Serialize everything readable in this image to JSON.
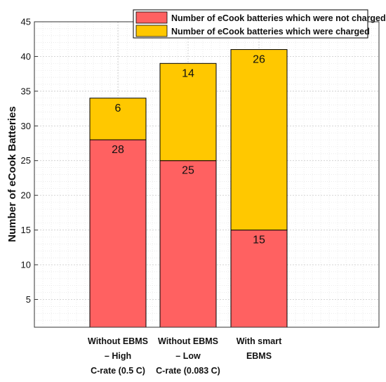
{
  "chart_data": {
    "type": "bar",
    "stacked": true,
    "categories": [
      [
        "Without EBMS",
        "– High",
        "C-rate (0.5 C)"
      ],
      [
        "Without EBMS",
        "– Low",
        "C-rate (0.083 C)"
      ],
      [
        "With smart",
        "EBMS"
      ]
    ],
    "series": [
      {
        "name": "Number of eCook batteries which were not charged",
        "values": [
          28,
          25,
          15
        ],
        "color": "#ff6161"
      },
      {
        "name": "Number of eCook batteries which were charged",
        "values": [
          6,
          14,
          26
        ],
        "color": "#ffc800"
      }
    ],
    "ylabel": "Number of eCook Batteries",
    "xlabel": "",
    "ylim": [
      1,
      45
    ],
    "yticks": [
      5,
      10,
      15,
      20,
      25,
      30,
      35,
      40,
      45
    ],
    "grid": true,
    "legend_position": "top-right"
  }
}
